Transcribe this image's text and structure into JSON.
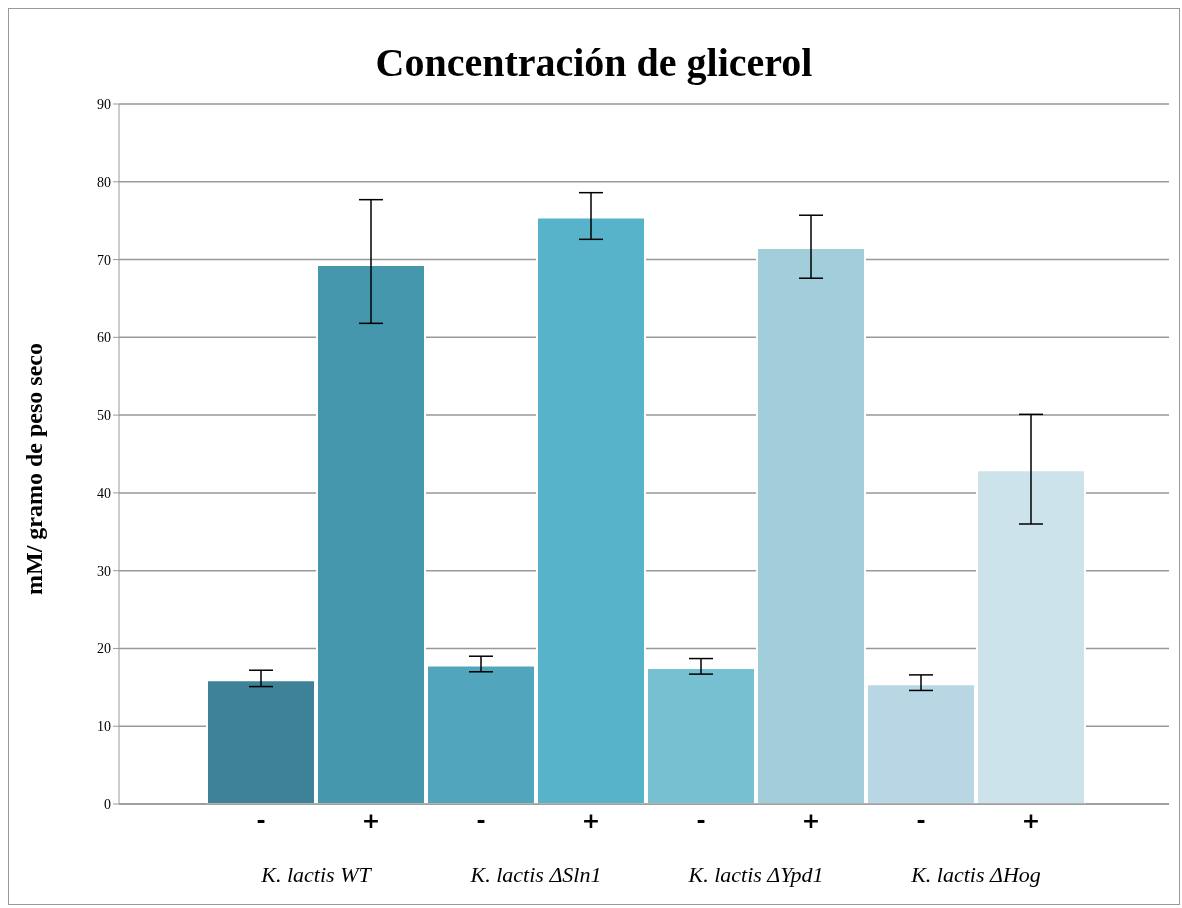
{
  "chart_data": {
    "type": "bar",
    "title": "Concentración de glicerol",
    "ylabel": "mM/ gramo de peso seco",
    "categories": [
      "-",
      "+",
      "-",
      "+",
      "-",
      "+",
      "-",
      "+"
    ],
    "values": [
      15.9,
      69.3,
      17.8,
      75.4,
      17.5,
      71.5,
      15.4,
      42.9
    ],
    "errors": [
      [
        15.1,
        17.2
      ],
      [
        61.8,
        77.7
      ],
      [
        17.0,
        19.0
      ],
      [
        72.6,
        78.6
      ],
      [
        16.7,
        18.7
      ],
      [
        67.6,
        75.7
      ],
      [
        14.6,
        16.6
      ],
      [
        36.0,
        50.1
      ]
    ],
    "colors": [
      "#3d8296",
      "#4497ac",
      "#51a6bd",
      "#57b3ca",
      "#77c0d1",
      "#a2cdda",
      "#b8d6e3",
      "#cde3eb"
    ],
    "annotations": [
      "K. lactis WT",
      "K. lactis ΔSln1",
      "K. lactis ΔYpd1",
      "K. lactis ΔHog"
    ],
    "ylim": [
      0,
      90
    ],
    "yticks": [
      0,
      10,
      20,
      30,
      40,
      50,
      60,
      70,
      80,
      90
    ],
    "grid": "y"
  }
}
